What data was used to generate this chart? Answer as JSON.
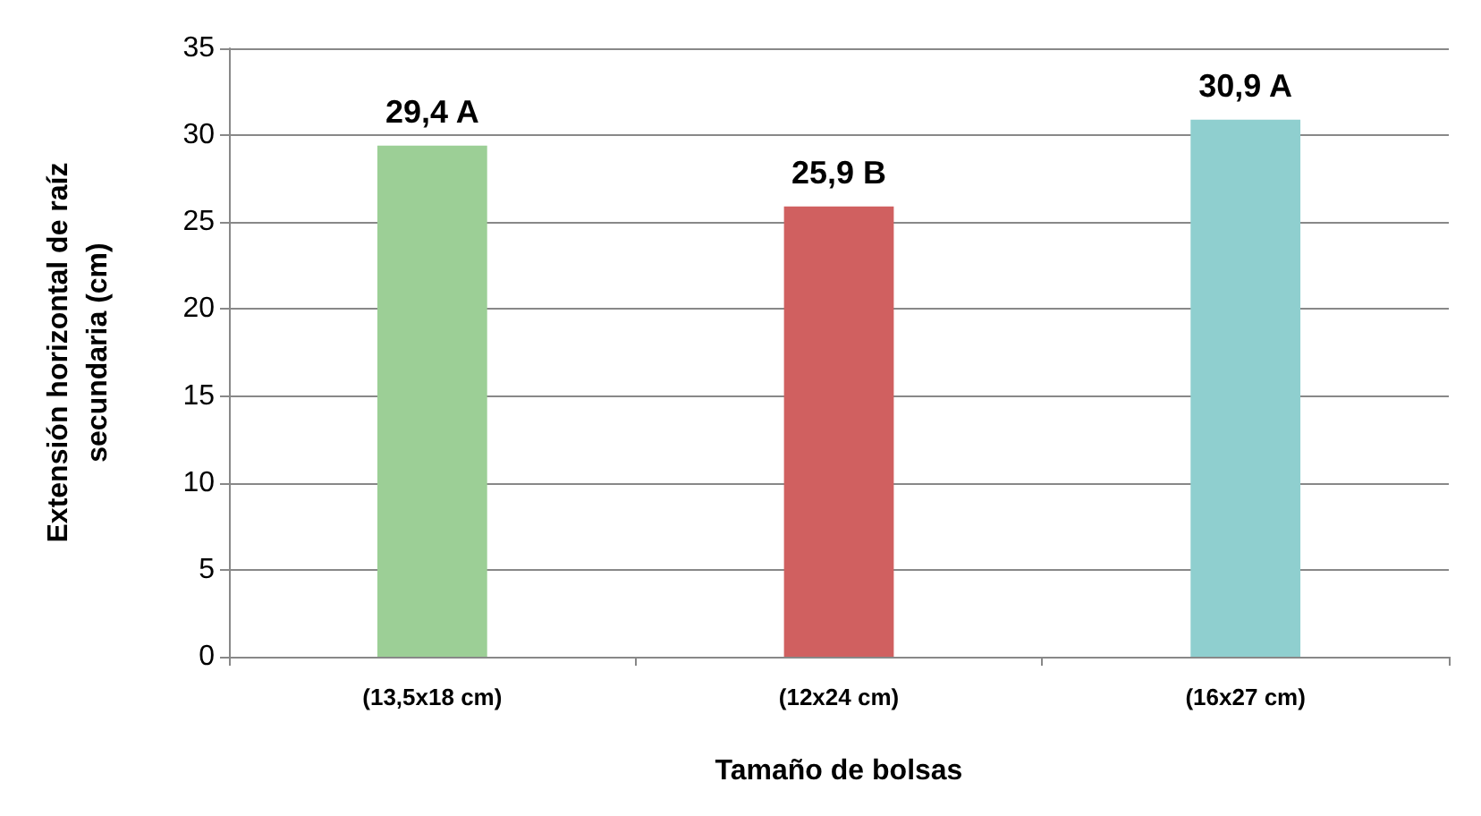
{
  "chart_data": {
    "type": "bar",
    "xlabel": "Tamaño de bolsas",
    "ylabel": "Extensión horizontal de raíz secundaria (cm)",
    "categories": [
      "(13,5x18 cm)",
      "(12x24 cm)",
      "(16x27 cm)"
    ],
    "values": [
      29.4,
      25.9,
      30.9
    ],
    "colors": [
      "#9ccf96",
      "#d06060",
      "#8fcfcf"
    ],
    "value_labels": [
      "29,4 A",
      "25,9 B",
      "30,9 A"
    ],
    "ylim": [
      0,
      35
    ],
    "yticks": [
      0,
      5,
      10,
      15,
      20,
      25,
      30,
      35
    ],
    "grid": "y"
  }
}
